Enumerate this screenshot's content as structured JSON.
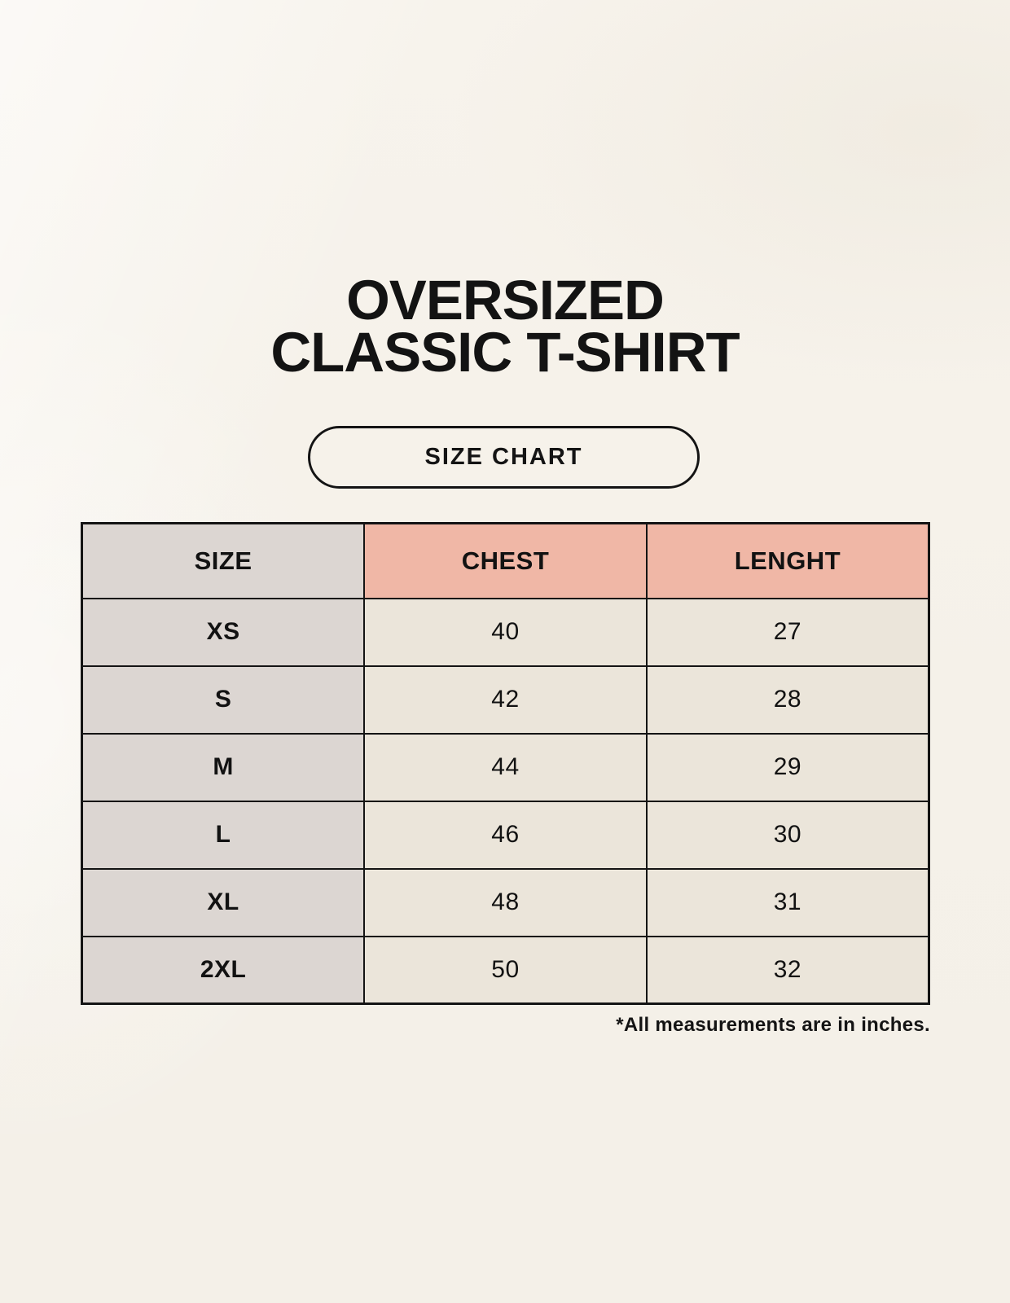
{
  "colors": {
    "background": "#f5f1e9",
    "header_pink": "#f0b7a6",
    "size_column_gray": "#dcd6d2",
    "value_cell_beige": "#ebe5da",
    "border_black": "#141414",
    "text_black": "#121212"
  },
  "title": {
    "line1": "OVERSIZED",
    "line2": "CLASSIC T-SHIRT"
  },
  "size_chart_button": {
    "label": "SIZE CHART"
  },
  "chart_data": {
    "type": "table",
    "title": "OVERSIZED CLASSIC T-SHIRT",
    "subtitle": "SIZE CHART",
    "columns": [
      "SIZE",
      "CHEST",
      "LENGHT"
    ],
    "rows": [
      [
        "XS",
        "40",
        "27"
      ],
      [
        "S",
        "42",
        "28"
      ],
      [
        "M",
        "44",
        "29"
      ],
      [
        "L",
        "46",
        "30"
      ],
      [
        "XL",
        "48",
        "31"
      ],
      [
        "2XL",
        "50",
        "32"
      ]
    ],
    "units": "inches"
  },
  "footnote": "*All measurements are in inches."
}
